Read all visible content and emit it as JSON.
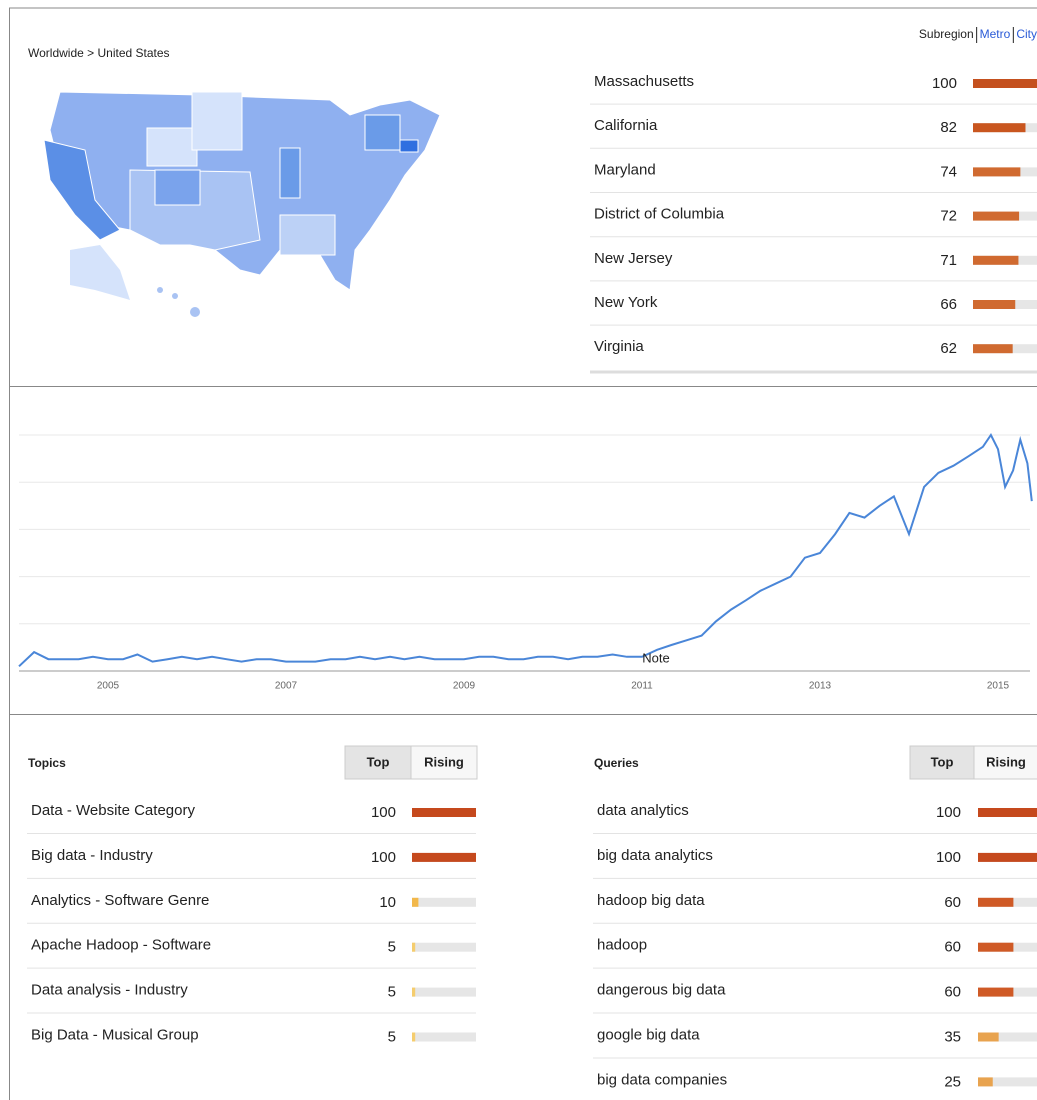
{
  "breadcrumb": "Worldwide > United States",
  "region_tabs": [
    "Subregion",
    "Metro",
    "City"
  ],
  "regions": [
    {
      "name": "Massachusetts",
      "value": 100,
      "color": "#c4501e"
    },
    {
      "name": "California",
      "value": 82,
      "color": "#c9561f"
    },
    {
      "name": "Maryland",
      "value": 74,
      "color": "#d06a30"
    },
    {
      "name": "District of Columbia",
      "value": 72,
      "color": "#d06a30"
    },
    {
      "name": "New Jersey",
      "value": 71,
      "color": "#d06a30"
    },
    {
      "name": "New York",
      "value": 66,
      "color": "#d06a30"
    },
    {
      "name": "Virginia",
      "value": 62,
      "color": "#d06a30"
    }
  ],
  "chart_data": {
    "type": "line",
    "color": "#4a86d8",
    "x": [
      2004.0,
      2004.17,
      2004.33,
      2004.5,
      2004.67,
      2004.83,
      2005.0,
      2005.17,
      2005.33,
      2005.5,
      2005.67,
      2005.83,
      2006.0,
      2006.17,
      2006.33,
      2006.5,
      2006.67,
      2006.83,
      2007.0,
      2007.17,
      2007.33,
      2007.5,
      2007.67,
      2007.83,
      2008.0,
      2008.17,
      2008.33,
      2008.5,
      2008.67,
      2008.83,
      2009.0,
      2009.17,
      2009.33,
      2009.5,
      2009.67,
      2009.83,
      2010.0,
      2010.17,
      2010.33,
      2010.5,
      2010.67,
      2010.83,
      2011.0,
      2011.17,
      2011.33,
      2011.5,
      2011.67,
      2011.83,
      2012.0,
      2012.17,
      2012.33,
      2012.5,
      2012.67,
      2012.83,
      2013.0,
      2013.17,
      2013.33,
      2013.5,
      2013.67,
      2013.83,
      2014.0,
      2014.17,
      2014.33,
      2014.5,
      2014.67,
      2014.83,
      2014.92,
      2015.0,
      2015.08,
      2015.17,
      2015.25,
      2015.33,
      2015.38
    ],
    "values": [
      2,
      8,
      5,
      5,
      5,
      6,
      5,
      5,
      7,
      4,
      5,
      6,
      5,
      6,
      5,
      4,
      5,
      5,
      4,
      4,
      4,
      5,
      5,
      6,
      5,
      6,
      5,
      6,
      5,
      5,
      5,
      6,
      6,
      5,
      5,
      6,
      6,
      5,
      6,
      6,
      7,
      6,
      6,
      9,
      11,
      13,
      15,
      21,
      26,
      30,
      34,
      37,
      40,
      48,
      50,
      58,
      67,
      65,
      70,
      74,
      58,
      78,
      84,
      87,
      91,
      95,
      100,
      94,
      78,
      85,
      98,
      88,
      72
    ],
    "xlim": [
      2004,
      2015.4
    ],
    "ylim": [
      0,
      100
    ],
    "xticks": [
      2005,
      2007,
      2009,
      2011,
      2013,
      2015
    ],
    "yticks": [
      0,
      20,
      40,
      60,
      80,
      100
    ],
    "grid": true,
    "annotations": [
      {
        "text": "Note",
        "x": 2011
      }
    ]
  },
  "topics": {
    "title": "Topics",
    "tabs": [
      "Top",
      "Rising"
    ],
    "rows": [
      {
        "name": "Data - Website Category",
        "value": 100,
        "color": "#c5491d"
      },
      {
        "name": "Big data - Industry",
        "value": 100,
        "color": "#c5491d"
      },
      {
        "name": "Analytics - Software Genre",
        "value": 10,
        "color": "#f2b84b"
      },
      {
        "name": "Apache Hadoop - Software",
        "value": 5,
        "color": "#f5cd6e"
      },
      {
        "name": "Data analysis - Industry",
        "value": 5,
        "color": "#f5cd6e"
      },
      {
        "name": "Big Data - Musical Group",
        "value": 5,
        "color": "#f5cd6e"
      }
    ]
  },
  "queries": {
    "title": "Queries",
    "tabs": [
      "Top",
      "Rising"
    ],
    "rows": [
      {
        "name": "data analytics",
        "value": 100,
        "color": "#c5491d"
      },
      {
        "name": "big data analytics",
        "value": 100,
        "color": "#c5491d"
      },
      {
        "name": "hadoop big data",
        "value": 60,
        "color": "#cf5a26"
      },
      {
        "name": "hadoop",
        "value": 60,
        "color": "#cf5a26"
      },
      {
        "name": "dangerous big data",
        "value": 60,
        "color": "#cf5a26"
      },
      {
        "name": "google big data",
        "value": 35,
        "color": "#e8a34f"
      },
      {
        "name": "big data companies",
        "value": 25,
        "color": "#e8a34f"
      }
    ]
  }
}
